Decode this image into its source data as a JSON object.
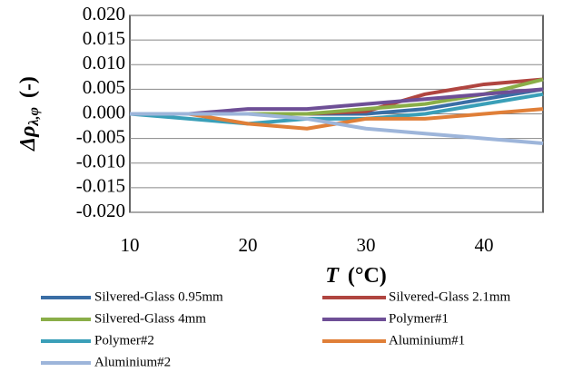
{
  "chart_data": {
    "type": "line",
    "y_label": "Δρ",
    "y_label_sub": "λ,φ",
    "y_label_unit": "(-)",
    "x_label": "T",
    "x_label_unit": "(°C)",
    "x": [
      10,
      15,
      20,
      25,
      30,
      35,
      40,
      45
    ],
    "xlim": [
      10,
      45
    ],
    "xticks": [
      10,
      20,
      30,
      40
    ],
    "ylim": [
      -0.02,
      0.02
    ],
    "yticks": [
      {
        "value": -0.02,
        "label": "-0.020"
      },
      {
        "value": -0.015,
        "label": "-0.015"
      },
      {
        "value": -0.01,
        "label": "-0.010"
      },
      {
        "value": -0.005,
        "label": "-0.005"
      },
      {
        "value": 0,
        "label": "0.000"
      },
      {
        "value": 0.005,
        "label": "0.005"
      },
      {
        "value": 0.01,
        "label": "0.010"
      },
      {
        "value": 0.015,
        "label": "0.015"
      },
      {
        "value": 0.02,
        "label": "0.020"
      }
    ],
    "grid": true,
    "series": [
      {
        "name": "Silvered-Glass 0.95mm",
        "color": "#3a6ea5",
        "values": [
          0,
          0,
          0,
          0,
          0,
          0.001,
          0.003,
          0.005
        ]
      },
      {
        "name": "Silvered-Glass 2.1mm",
        "color": "#b04540",
        "values": [
          0,
          0,
          0,
          0,
          0.0005,
          0.004,
          0.006,
          0.007
        ]
      },
      {
        "name": "Silvered-Glass 4mm",
        "color": "#8aae48",
        "values": [
          0,
          0,
          0,
          0,
          0.001,
          0.002,
          0.004,
          0.007
        ]
      },
      {
        "name": "Polymer#1",
        "color": "#6e4f96",
        "values": [
          0,
          0,
          0.001,
          0.001,
          0.002,
          0.003,
          0.004,
          0.005
        ]
      },
      {
        "name": "Polymer#2",
        "color": "#3a9fb8",
        "values": [
          0,
          -0.001,
          -0.002,
          -0.001,
          -0.001,
          0,
          0.002,
          0.004
        ]
      },
      {
        "name": "Aluminium#1",
        "color": "#e07f38",
        "values": [
          0,
          0,
          -0.002,
          -0.003,
          -0.001,
          -0.001,
          0,
          0.001
        ]
      },
      {
        "name": "Aluminium#2",
        "color": "#9db5da",
        "values": [
          0,
          0,
          0,
          -0.001,
          -0.003,
          -0.004,
          -0.005,
          -0.006
        ]
      }
    ]
  }
}
